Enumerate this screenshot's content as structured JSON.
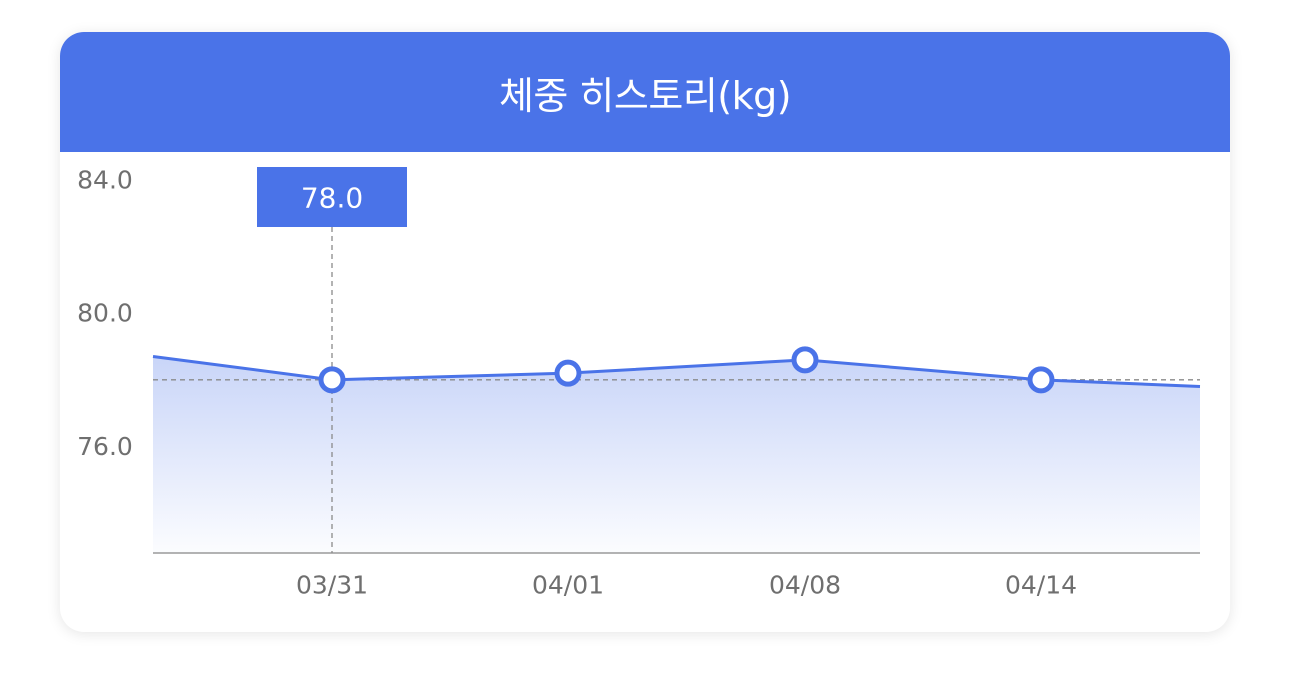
{
  "card": {
    "title": "체중 히스토리(kg)"
  },
  "colors": {
    "accent": "#4a73e8",
    "axis_text": "#6f6f6f",
    "background": "#ffffff"
  },
  "chart_data": {
    "type": "area",
    "title": "체중 히스토리(kg)",
    "xlabel": "",
    "ylabel": "",
    "y_ticks": [
      "84.0",
      "80.0",
      "76.0"
    ],
    "ylim": [
      72.8,
      84.0
    ],
    "x": [
      "03/31",
      "04/01",
      "04/08",
      "04/14"
    ],
    "series": [
      {
        "values": [
          78.0,
          78.2,
          78.6,
          78.0
        ],
        "lead_in_value": 78.7,
        "lead_out_value": 77.8
      }
    ],
    "reference_line": 78.0,
    "selected": {
      "label": "03/31",
      "value_label": "78.0"
    },
    "grid": false,
    "legend": "none"
  }
}
